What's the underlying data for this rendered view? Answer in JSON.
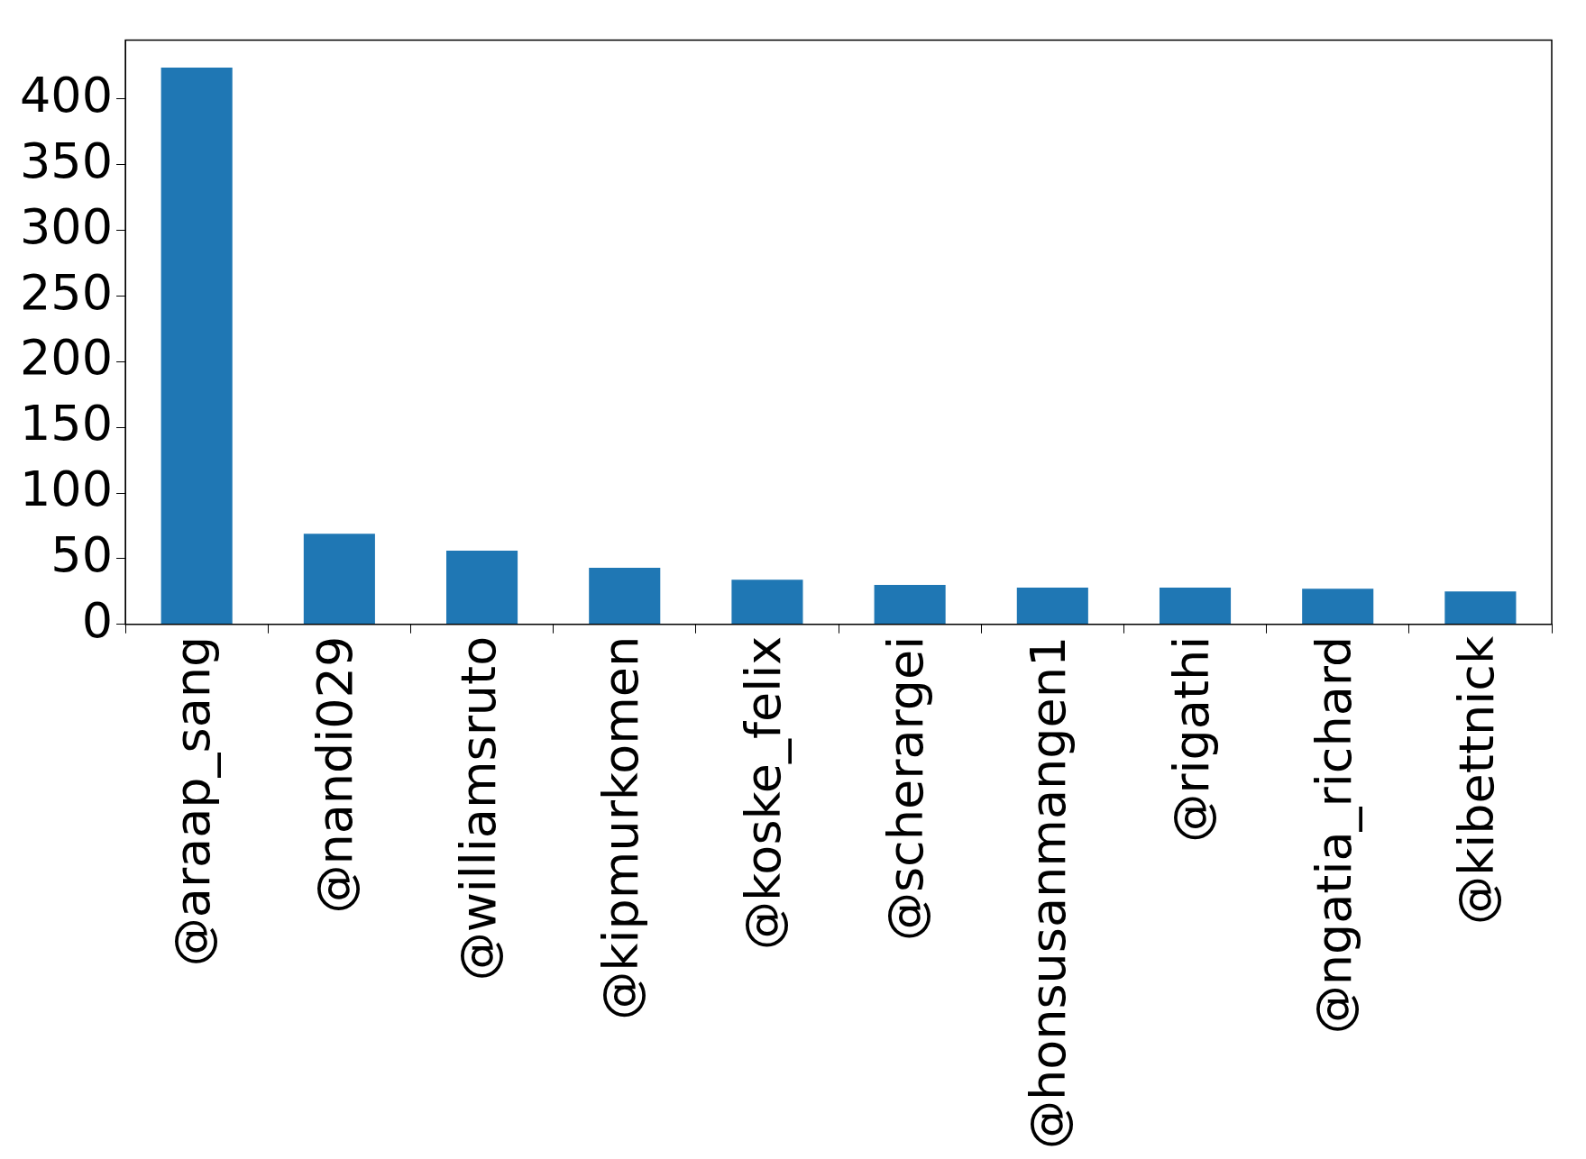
{
  "chart_data": {
    "type": "bar",
    "categories": [
      "@araap_sang",
      "@nandi029",
      "@williamsruto",
      "@kipmurkomen",
      "@koske_felix",
      "@scherargei",
      "@honsusanmangen1",
      "@rigathi",
      "@ngatia_richard",
      "@kibettnick"
    ],
    "values": [
      424,
      69,
      56,
      43,
      34,
      30,
      28,
      28,
      27,
      25
    ],
    "color": "#1f77b4",
    "ylim": [
      0,
      445
    ],
    "yticks": [
      0,
      50,
      100,
      150,
      200,
      250,
      300,
      350,
      400
    ]
  }
}
